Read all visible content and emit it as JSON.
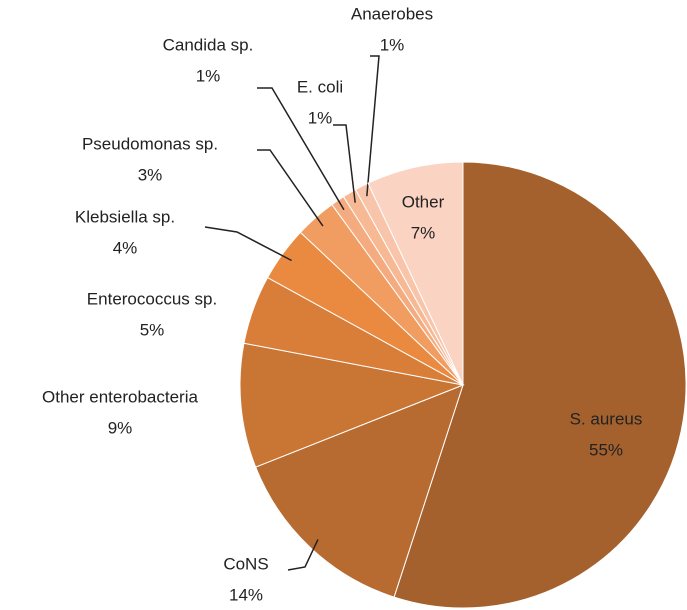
{
  "chart_data": {
    "type": "pie",
    "categories": [
      "S. aureus",
      "CoNS",
      "Other enterobacteria",
      "Enterococcus sp.",
      "Klebsiella sp.",
      "Pseudomonas sp.",
      "Candida sp.",
      "E. coli",
      "Anaerobes",
      "Other"
    ],
    "values": [
      55,
      14,
      9,
      5,
      4,
      3,
      1,
      1,
      1,
      7
    ],
    "value_labels": [
      "55%",
      "14%",
      "9%",
      "5%",
      "4%",
      "3%",
      "1%",
      "1%",
      "1%",
      "7%"
    ],
    "colors": [
      "#a5612d",
      "#b86b31",
      "#c97534",
      "#d97e38",
      "#ea8a40",
      "#f19c60",
      "#f4ab80",
      "#f7b894",
      "#f9c5aa",
      "#fad3c3"
    ]
  }
}
